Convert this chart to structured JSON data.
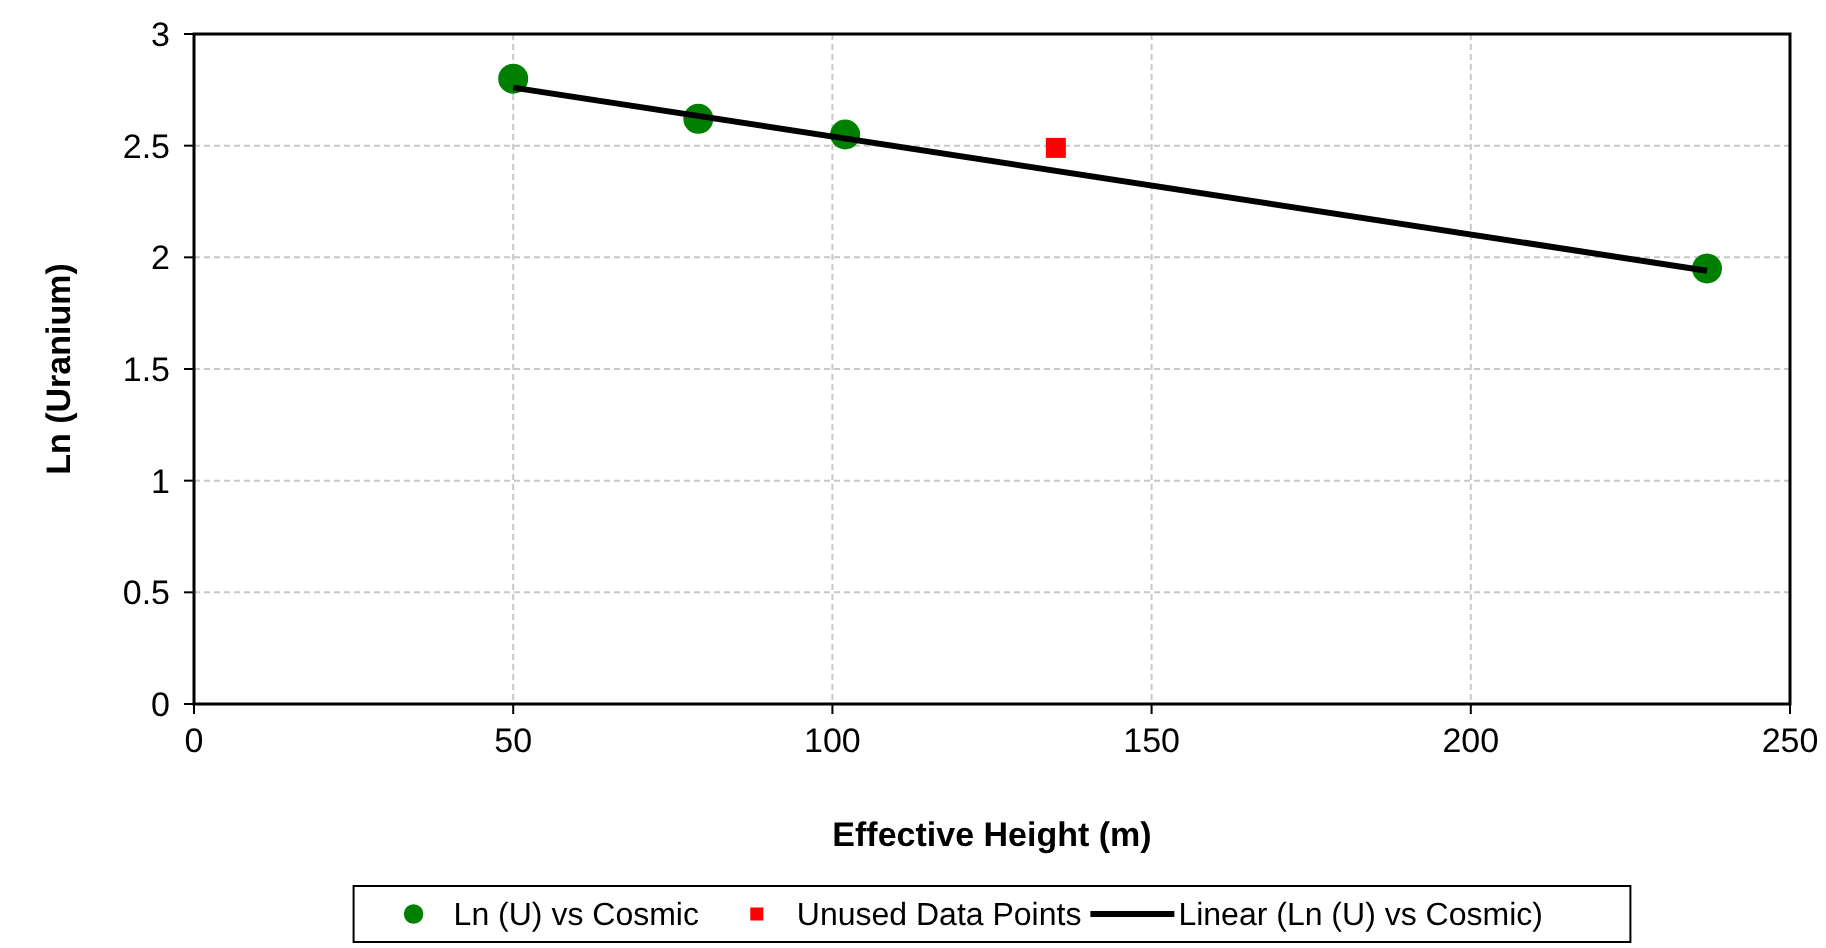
{
  "chart_data": {
    "type": "scatter",
    "xlabel": "Effective Height (m)",
    "ylabel": "Ln (Uranium)",
    "xlim": [
      0,
      250
    ],
    "xticks": [
      0,
      50,
      100,
      150,
      200,
      250
    ],
    "ylim": [
      0,
      3
    ],
    "yticks": [
      0,
      0.5,
      1,
      1.5,
      2,
      2.5,
      3
    ],
    "grid": true,
    "legend": "bottom",
    "series": [
      {
        "name": "Ln (U) vs Cosmic",
        "marker": "circle",
        "color": "#008000",
        "x": [
          50,
          79,
          102,
          237
        ],
        "values": [
          2.8,
          2.62,
          2.55,
          1.95
        ]
      },
      {
        "name": "Unused Data Points",
        "marker": "square",
        "color": "#ff0000",
        "x": [
          135
        ],
        "values": [
          2.49
        ]
      },
      {
        "name": "Linear (Ln (U) vs Cosmic)",
        "type": "line",
        "marker": "none",
        "line_style": "solid",
        "color": "#000000",
        "x": [
          50,
          237
        ],
        "values": [
          2.76,
          1.94
        ]
      }
    ]
  }
}
